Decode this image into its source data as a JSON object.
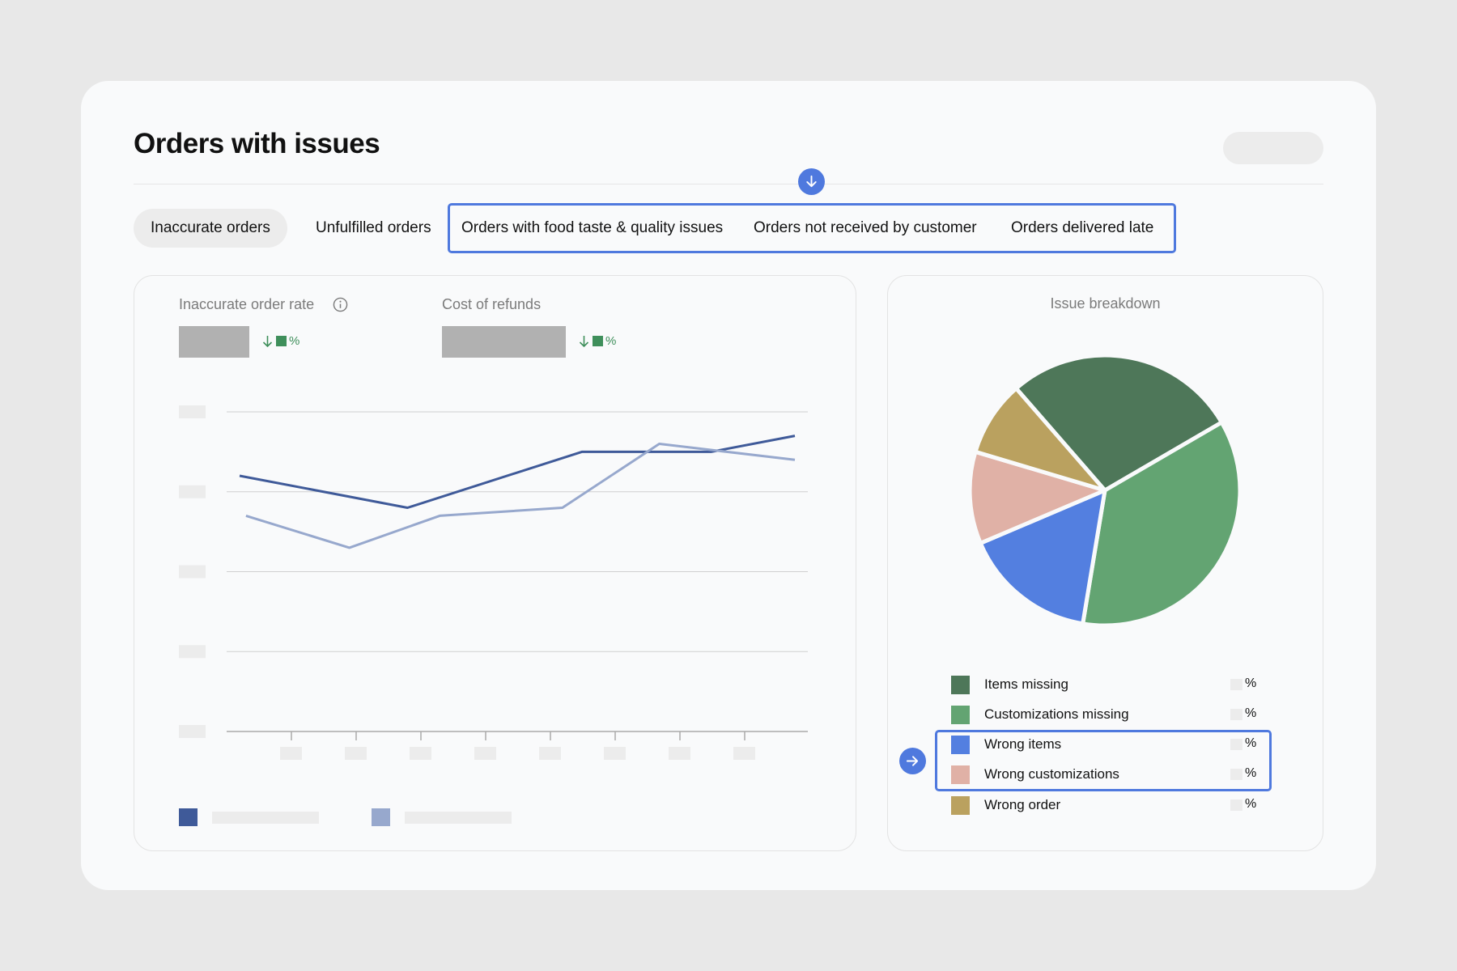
{
  "page": {
    "title": "Orders with issues"
  },
  "tabs": [
    {
      "label": "Inaccurate orders",
      "active": true
    },
    {
      "label": "Unfulfilled orders",
      "active": false
    },
    {
      "label": "Orders with food taste & quality issues",
      "active": false
    },
    {
      "label": "Orders not received by customer",
      "active": false
    },
    {
      "label": "Orders delivered late",
      "active": false
    }
  ],
  "metrics": [
    {
      "label": "Inaccurate order rate",
      "delta_unit": "%"
    },
    {
      "label": "Cost of refunds",
      "delta_unit": "%"
    }
  ],
  "breakdown": {
    "title": "Issue breakdown",
    "items": [
      {
        "label": "Items missing",
        "unit": "%",
        "color": "#4e7759"
      },
      {
        "label": "Customizations missing",
        "unit": "%",
        "color": "#63a472"
      },
      {
        "label": "Wrong items",
        "unit": "%",
        "color": "#537fe0"
      },
      {
        "label": "Wrong customizations",
        "unit": "%",
        "color": "#e0b1a6"
      },
      {
        "label": "Wrong order",
        "unit": "%",
        "color": "#baa15f"
      }
    ]
  },
  "colors": {
    "accent": "#4f79de",
    "series_dark": "#3f5a99",
    "series_light": "#97a8cd",
    "positive": "#3f8f5b"
  },
  "chart_data": [
    {
      "type": "line",
      "ylim": [
        0,
        4
      ],
      "x": [
        1,
        2,
        3,
        4,
        5,
        6,
        7,
        8,
        9,
        10
      ],
      "series": [
        {
          "color": "#3f5a99",
          "values": [
            3.2,
            null,
            2.9,
            null,
            null,
            3.5,
            null,
            3.5,
            3.7,
            null
          ],
          "points": [
            [
              0.2,
              3.2
            ],
            [
              2.8,
              2.8
            ],
            [
              5.5,
              3.5
            ],
            [
              7.5,
              3.5
            ],
            [
              8.8,
              3.7
            ]
          ]
        },
        {
          "color": "#97a8cd",
          "points": [
            [
              0.3,
              2.7
            ],
            [
              1.9,
              2.3
            ],
            [
              3.3,
              2.7
            ],
            [
              5.2,
              2.8
            ],
            [
              6.7,
              3.6
            ],
            [
              8.8,
              3.4
            ]
          ]
        }
      ],
      "y_ticks": 5,
      "x_ticks": 8
    },
    {
      "type": "pie",
      "labels": [
        "Items missing",
        "Customizations missing",
        "Wrong items",
        "Wrong customizations",
        "Wrong order"
      ],
      "values": [
        28,
        36,
        16,
        11,
        9
      ]
    }
  ]
}
